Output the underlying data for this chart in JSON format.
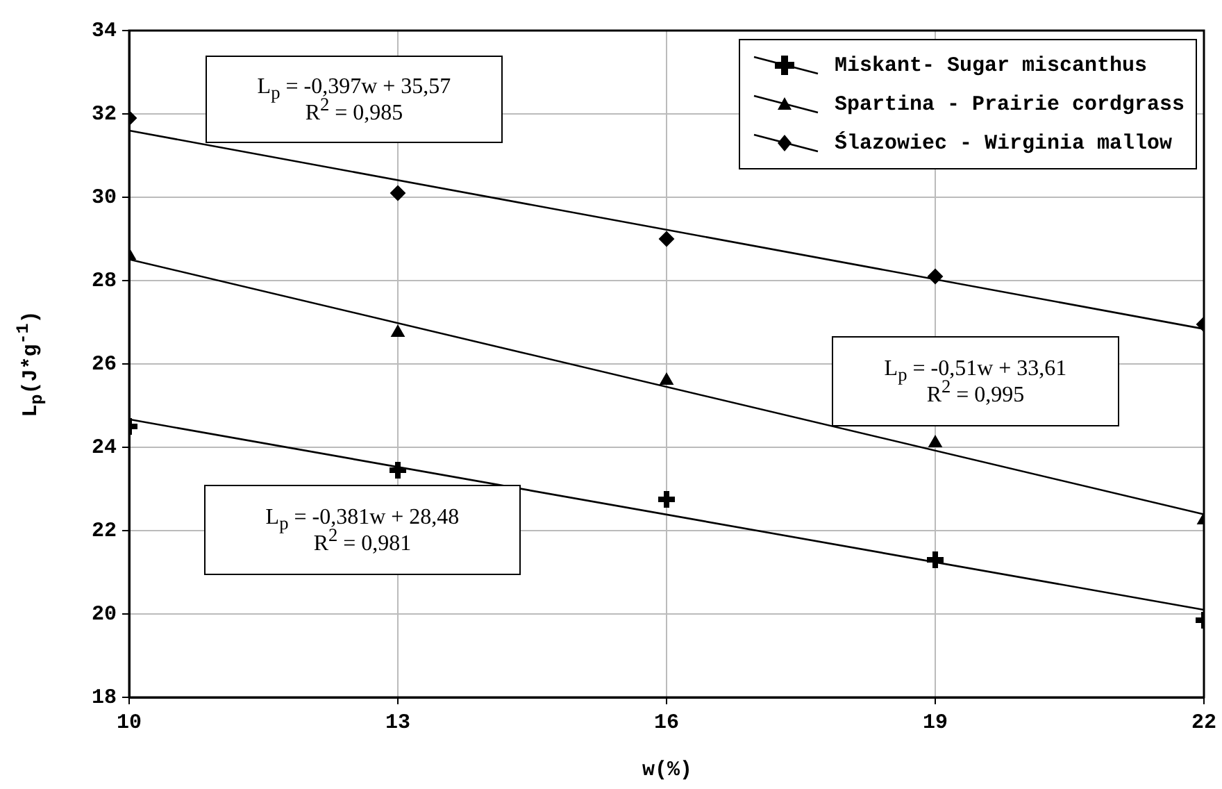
{
  "chart_data": {
    "type": "scatter",
    "xlabel": "w(%)",
    "ylabel": "L$_{p}$(J*g$^{-1}$)",
    "xlim": [
      10,
      22
    ],
    "xticks": [
      10,
      13,
      16,
      19,
      22
    ],
    "ylim": [
      18,
      34
    ],
    "yticks": [
      18,
      20,
      22,
      24,
      26,
      28,
      30,
      32,
      34
    ],
    "grid": true,
    "legend": "top right",
    "series": [
      {
        "name": "Miskant- Sugar miscanthus",
        "color": "#000000",
        "marker": "cross",
        "x": [
          10,
          13,
          16,
          19,
          22
        ],
        "values": [
          24.5,
          23.45,
          22.75,
          21.3,
          19.85
        ]
      },
      {
        "name": "Spartina - Prairie cordgrass",
        "color": "#000000",
        "marker": "triangle",
        "x": [
          10,
          13,
          16,
          19,
          22
        ],
        "values": [
          28.6,
          26.75,
          25.6,
          24.1,
          22.25
        ]
      },
      {
        "name": "Ślazowiec - Wirginia mallow",
        "color": "#000000",
        "marker": "diamond",
        "x": [
          10,
          13,
          16,
          19,
          22
        ],
        "values": [
          31.9,
          30.1,
          29.0,
          28.1,
          26.95
        ]
      },
      {
        "type": "line",
        "color": "#000000",
        "marker": "none",
        "x": [
          10,
          22
        ],
        "values": [
          24.67,
          20.1
        ]
      },
      {
        "type": "line",
        "color": "#000000",
        "marker": "none",
        "x": [
          10,
          22
        ],
        "values": [
          28.51,
          22.39
        ]
      },
      {
        "type": "line",
        "color": "#000000",
        "marker": "none",
        "x": [
          10,
          22
        ],
        "values": [
          31.6,
          26.84
        ]
      }
    ],
    "annotations": [
      "L$_{p}$ = -0,397w + 35,57\nR$^{2}$ = 0,985",
      "L$_{p}$ = -0,51w + 33,61\nR$^{2}$ = 0,995",
      "L$_{p}$ = -0,381w + 28,48\nR$^{2}$ = 0,981"
    ]
  }
}
